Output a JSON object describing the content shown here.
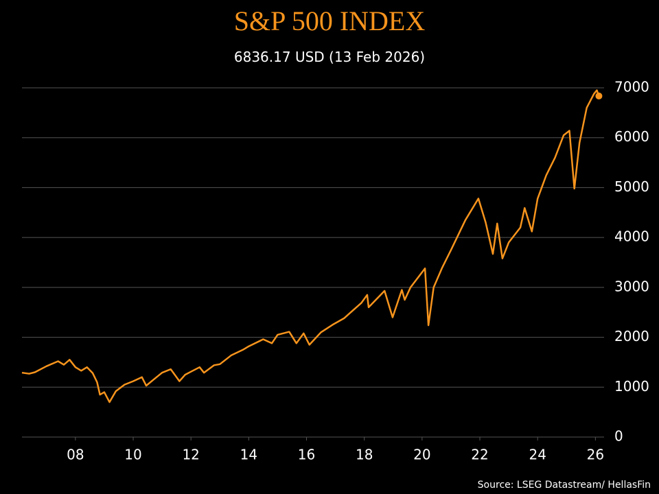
{
  "chart_data": {
    "type": "line",
    "title": "S&P 500 INDEX",
    "subtitle": "6836.17 USD (13 Feb 2026)",
    "source": "Source: LSEG Datastream/ HellasFin",
    "x": [
      2006.15,
      2006.4,
      2006.6,
      2007.0,
      2007.4,
      2007.6,
      2007.8,
      2008.0,
      2008.2,
      2008.4,
      2008.6,
      2008.75,
      2008.85,
      2009.0,
      2009.18,
      2009.4,
      2009.7,
      2010.0,
      2010.3,
      2010.45,
      2010.7,
      2011.0,
      2011.3,
      2011.6,
      2011.8,
      2012.0,
      2012.3,
      2012.45,
      2012.8,
      2013.0,
      2013.4,
      2013.8,
      2014.0,
      2014.5,
      2014.8,
      2015.0,
      2015.4,
      2015.65,
      2015.9,
      2016.1,
      2016.5,
      2016.9,
      2017.3,
      2017.9,
      2018.1,
      2018.15,
      2018.7,
      2018.98,
      2019.3,
      2019.4,
      2019.6,
      2020.1,
      2020.22,
      2020.4,
      2020.7,
      2021.0,
      2021.5,
      2021.95,
      2022.2,
      2022.45,
      2022.6,
      2022.78,
      2023.0,
      2023.4,
      2023.55,
      2023.8,
      2024.0,
      2024.3,
      2024.6,
      2024.9,
      2025.1,
      2025.27,
      2025.45,
      2025.7,
      2025.95,
      2026.05,
      2026.12
    ],
    "series": [
      {
        "color": "#f7941d",
        "values": [
          1290,
          1270,
          1300,
          1420,
          1520,
          1450,
          1550,
          1400,
          1330,
          1400,
          1280,
          1100,
          850,
          900,
          700,
          920,
          1050,
          1120,
          1200,
          1030,
          1150,
          1290,
          1360,
          1120,
          1250,
          1310,
          1400,
          1290,
          1440,
          1460,
          1640,
          1750,
          1820,
          1960,
          1880,
          2050,
          2110,
          1880,
          2080,
          1850,
          2100,
          2250,
          2380,
          2690,
          2850,
          2600,
          2930,
          2400,
          2950,
          2750,
          3000,
          3380,
          2240,
          3000,
          3400,
          3750,
          4350,
          4780,
          4300,
          3670,
          4280,
          3580,
          3900,
          4200,
          4590,
          4120,
          4780,
          5250,
          5600,
          6050,
          6140,
          4980,
          5900,
          6600,
          6880,
          6950,
          6836.17
        ]
      }
    ],
    "xlim": [
      2006.15,
      2026.3
    ],
    "xticks": [
      {
        "value": 2008,
        "label": "08"
      },
      {
        "value": 2010,
        "label": "10"
      },
      {
        "value": 2012,
        "label": "12"
      },
      {
        "value": 2014,
        "label": "14"
      },
      {
        "value": 2016,
        "label": "16"
      },
      {
        "value": 2018,
        "label": "18"
      },
      {
        "value": 2020,
        "label": "20"
      },
      {
        "value": 2022,
        "label": "22"
      },
      {
        "value": 2024,
        "label": "24"
      },
      {
        "value": 2026,
        "label": "26"
      }
    ],
    "ylim": [
      0,
      7000
    ],
    "yticks": [
      0,
      1000,
      2000,
      3000,
      4000,
      5000,
      6000,
      7000
    ],
    "grid": true
  }
}
